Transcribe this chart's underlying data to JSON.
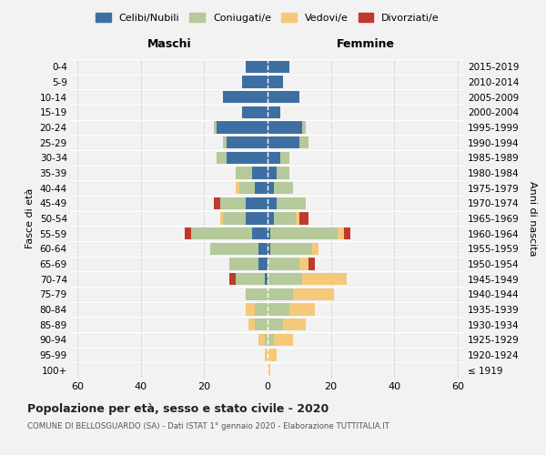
{
  "age_groups": [
    "100+",
    "95-99",
    "90-94",
    "85-89",
    "80-84",
    "75-79",
    "70-74",
    "65-69",
    "60-64",
    "55-59",
    "50-54",
    "45-49",
    "40-44",
    "35-39",
    "30-34",
    "25-29",
    "20-24",
    "15-19",
    "10-14",
    "5-9",
    "0-4"
  ],
  "birth_years": [
    "≤ 1919",
    "1920-1924",
    "1925-1929",
    "1930-1934",
    "1935-1939",
    "1940-1944",
    "1945-1949",
    "1950-1954",
    "1955-1959",
    "1960-1964",
    "1965-1969",
    "1970-1974",
    "1975-1979",
    "1980-1984",
    "1985-1989",
    "1990-1994",
    "1995-1999",
    "2000-2004",
    "2005-2009",
    "2010-2014",
    "2015-2019"
  ],
  "males": {
    "celibi": [
      0,
      0,
      0,
      0,
      0,
      0,
      1,
      3,
      3,
      5,
      7,
      7,
      4,
      5,
      13,
      13,
      16,
      8,
      14,
      8,
      7
    ],
    "coniugati": [
      0,
      0,
      1,
      4,
      4,
      7,
      9,
      9,
      15,
      19,
      7,
      8,
      5,
      5,
      3,
      1,
      1,
      0,
      0,
      0,
      0
    ],
    "vedovi": [
      0,
      1,
      2,
      2,
      3,
      0,
      0,
      0,
      0,
      0,
      1,
      0,
      1,
      0,
      0,
      0,
      0,
      0,
      0,
      0,
      0
    ],
    "divorziati": [
      0,
      0,
      0,
      0,
      0,
      0,
      2,
      0,
      0,
      2,
      0,
      2,
      0,
      0,
      0,
      0,
      0,
      0,
      0,
      0,
      0
    ]
  },
  "females": {
    "nubili": [
      0,
      0,
      0,
      0,
      0,
      0,
      0,
      0,
      1,
      1,
      2,
      3,
      2,
      3,
      4,
      10,
      11,
      4,
      10,
      5,
      7
    ],
    "coniugate": [
      0,
      0,
      2,
      5,
      7,
      8,
      11,
      10,
      13,
      21,
      7,
      9,
      6,
      4,
      3,
      3,
      1,
      0,
      0,
      0,
      0
    ],
    "vedove": [
      1,
      3,
      6,
      7,
      8,
      13,
      14,
      3,
      2,
      2,
      1,
      0,
      0,
      0,
      0,
      0,
      0,
      0,
      0,
      0,
      0
    ],
    "divorziate": [
      0,
      0,
      0,
      0,
      0,
      0,
      0,
      2,
      0,
      2,
      3,
      0,
      0,
      0,
      0,
      0,
      0,
      0,
      0,
      0,
      0
    ]
  },
  "color_celibi": "#3e6fa3",
  "color_coniugati": "#b5c99a",
  "color_vedovi": "#f5c97a",
  "color_divorziati": "#c0392b",
  "bg_color": "#f2f2f2",
  "grid_color": "#cccccc",
  "title": "Popolazione per età, sesso e stato civile - 2020",
  "subtitle": "COMUNE DI BELLOSGUARDO (SA) - Dati ISTAT 1° gennaio 2020 - Elaborazione TUTTITALIA.IT",
  "xlabel_left": "Maschi",
  "xlabel_right": "Femmine",
  "ylabel_left": "Fasce di età",
  "ylabel_right": "Anni di nascita",
  "xlim": 62,
  "xticks": [
    -60,
    -40,
    -20,
    0,
    20,
    40,
    60
  ],
  "legend_labels": [
    "Celibi/Nubili",
    "Coniugati/e",
    "Vedovi/e",
    "Divorziati/e"
  ]
}
